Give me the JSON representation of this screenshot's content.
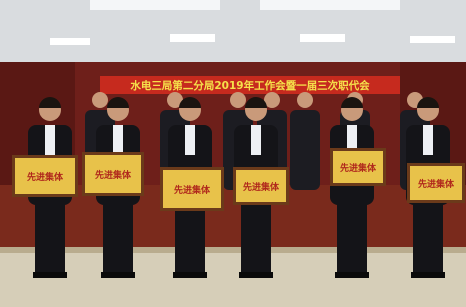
{
  "banner": "水电三局第二分局2019年工作会暨一届三次职代会",
  "plaques": [
    "先进集体",
    "先进集体",
    "先进集体",
    "先进集体",
    "先进集体",
    "先进集体"
  ]
}
